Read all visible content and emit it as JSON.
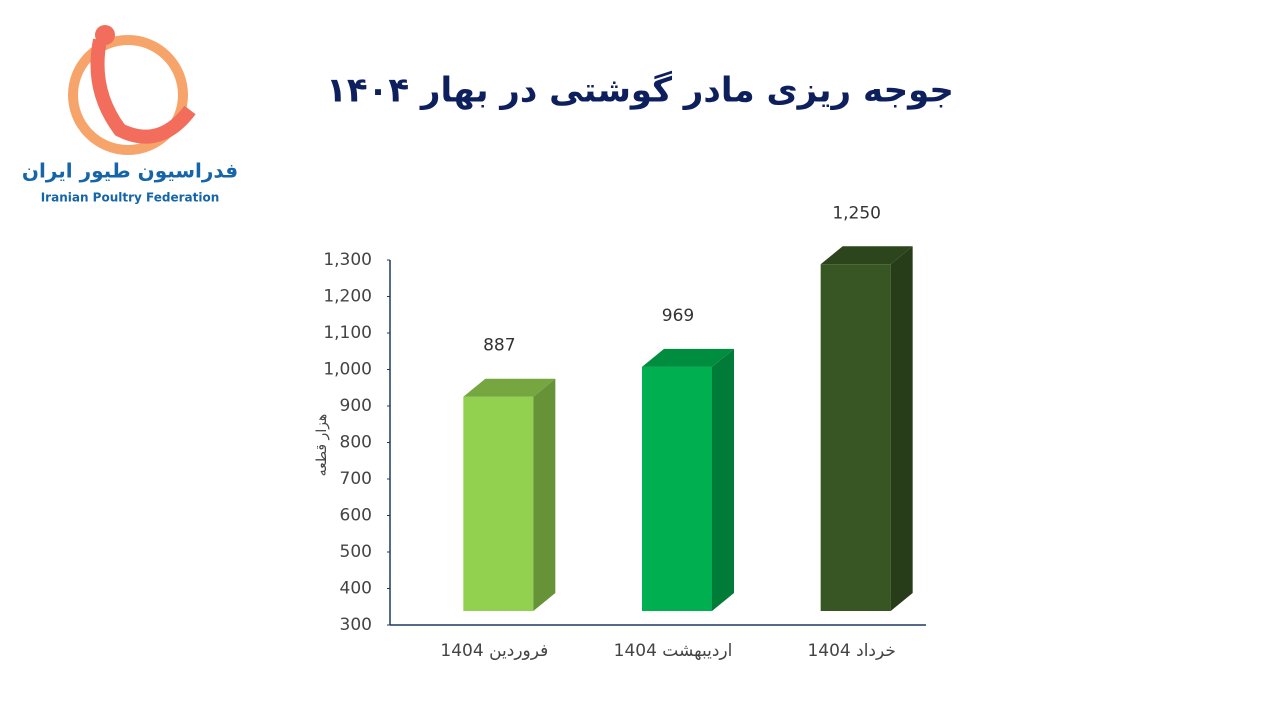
{
  "logo": {
    "name_fa": "فدراسیون طیور ایران",
    "name_en": "Iranian Poultry Federation"
  },
  "chart_data": {
    "type": "bar3d",
    "title": "جوجه ریزی مادر گوشتی در بهار ۱۴۰۴",
    "y_label": "هزار قطعه",
    "categories": [
      "فروردین 1404",
      "اردیبهشت 1404",
      "خرداد 1404"
    ],
    "values": [
      887,
      969,
      1250
    ],
    "value_labels": [
      "887",
      "969",
      "1,250"
    ],
    "colors": [
      "#92d050",
      "#00b050",
      "#375623"
    ],
    "ylim": [
      300,
      1300
    ],
    "yticks": [
      300,
      400,
      500,
      600,
      700,
      800,
      900,
      {
        "value": 1000,
        "label": "1,000"
      },
      {
        "value": 1100,
        "label": "1,100"
      },
      {
        "value": 1200,
        "label": "1,200"
      },
      {
        "value": 1300,
        "label": "1,300"
      }
    ]
  }
}
